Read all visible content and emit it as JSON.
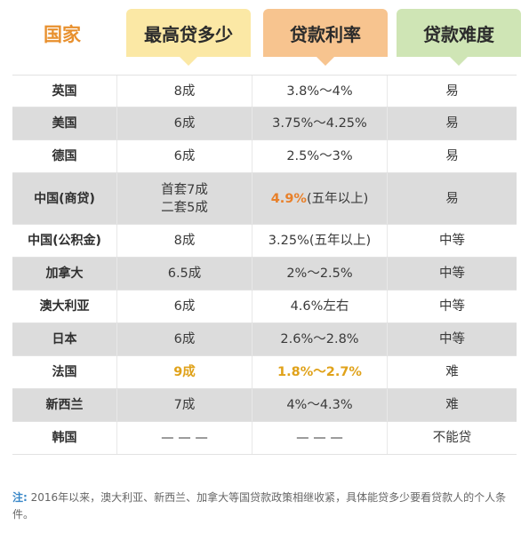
{
  "header": {
    "country": "国家",
    "max_loan": "最高贷多少",
    "rate": "贷款利率",
    "difficulty": "贷款难度"
  },
  "colors": {
    "country_header": "#e8902e",
    "tab_max": "#fbe8a5",
    "tab_rate": "#f7c48f",
    "tab_diff": "#cfe5b5",
    "highlight_gold": "#e0a21a",
    "highlight_orange": "#e8802a",
    "alt_row": "#dcdcdc"
  },
  "rows": [
    {
      "country": "英国",
      "max": "8成",
      "rate": "3.8%～4%",
      "difficulty": "易"
    },
    {
      "country": "美国",
      "max": "6成",
      "rate": "3.75%～4.25%",
      "difficulty": "易"
    },
    {
      "country": "德国",
      "max": "6成",
      "rate": "2.5%～3%",
      "difficulty": "易"
    },
    {
      "country": "中国(商贷)",
      "max_line1": "首套7成",
      "max_line2": "二套5成",
      "rate_hl": "4.9%",
      "rate_rest": "(五年以上)",
      "difficulty": "易"
    },
    {
      "country": "中国(公积金)",
      "max": "8成",
      "rate": "3.25%(五年以上)",
      "difficulty": "中等"
    },
    {
      "country": "加拿大",
      "max": "6.5成",
      "rate": "2%～2.5%",
      "difficulty": "中等"
    },
    {
      "country": "澳大利亚",
      "max": "6成",
      "rate": "4.6%左右",
      "difficulty": "中等"
    },
    {
      "country": "日本",
      "max": "6成",
      "rate": "2.6%～2.8%",
      "difficulty": "中等"
    },
    {
      "country": "法国",
      "max": "9成",
      "rate": "1.8%～2.7%",
      "difficulty": "难"
    },
    {
      "country": "新西兰",
      "max": "7成",
      "rate": "4%～4.3%",
      "difficulty": "难"
    },
    {
      "country": "韩国",
      "max": "— — —",
      "rate": "— — —",
      "difficulty": "不能贷"
    }
  ],
  "footnote": {
    "label": "注:",
    "text": "2016年以来，澳大利亚、新西兰、加拿大等国贷款政策相继收紧，具体能贷多少要看贷款人的个人条件。"
  }
}
